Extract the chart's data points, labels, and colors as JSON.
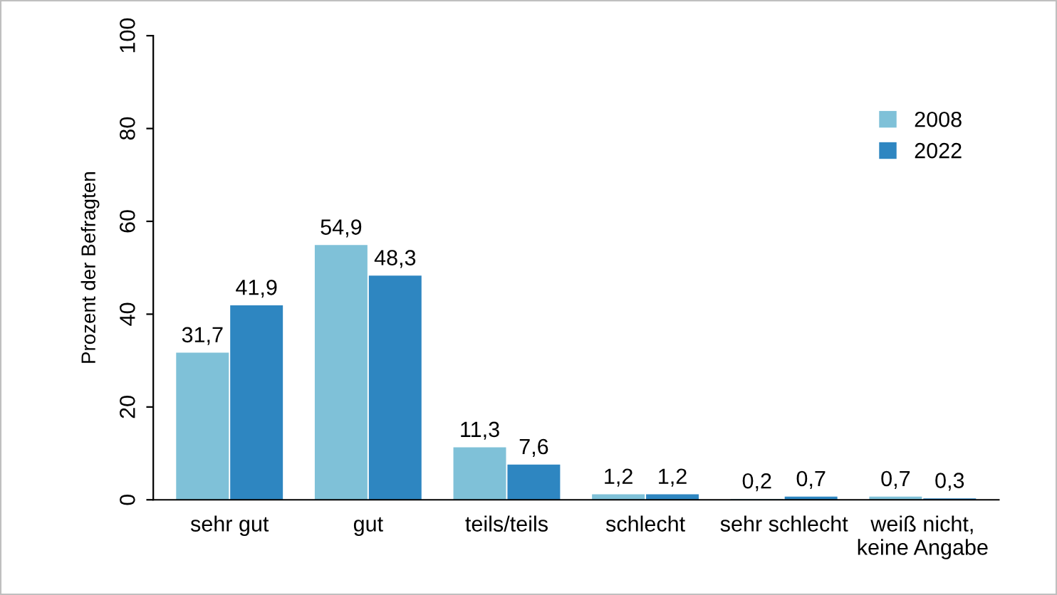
{
  "chart_data": {
    "type": "bar",
    "ylabel": "Prozent der Befragten",
    "categories": [
      "sehr gut",
      "gut",
      "teils/teils",
      "schlecht",
      "sehr schlecht",
      "weiß nicht,\nkeine Angabe"
    ],
    "series": [
      {
        "name": "2008",
        "color": "#7fc1d8",
        "values": [
          31.7,
          54.9,
          11.3,
          1.2,
          0.2,
          0.7
        ],
        "value_labels": [
          "31,7",
          "54,9",
          "11,3",
          "1,2",
          "0,2",
          "0,7"
        ]
      },
      {
        "name": "2022",
        "color": "#2e86c1",
        "values": [
          41.9,
          48.3,
          7.6,
          1.2,
          0.7,
          0.3
        ],
        "value_labels": [
          "41,9",
          "48,3",
          "7,6",
          "1,2",
          "0,7",
          "0,3"
        ]
      }
    ],
    "ylim": [
      0,
      100
    ],
    "yticks": [
      0,
      20,
      40,
      60,
      80,
      100
    ],
    "grid": false,
    "legend": "top right"
  }
}
